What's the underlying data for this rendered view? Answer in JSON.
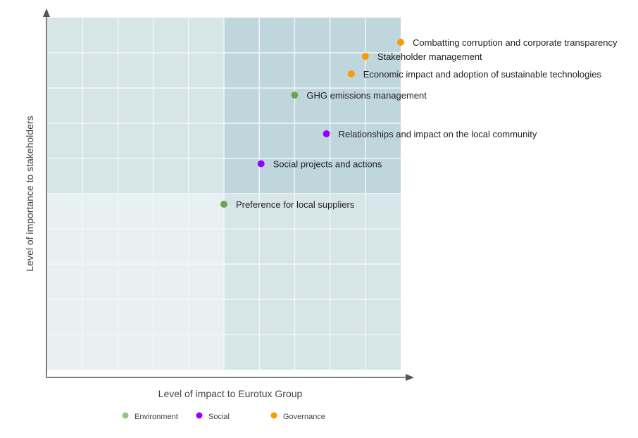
{
  "chart_data": {
    "type": "scatter",
    "title": "",
    "xlabel": "Level of impact to Eurotux Group",
    "ylabel": "Level of importance to stakeholders",
    "xlim": [
      0,
      10
    ],
    "ylim": [
      0,
      10
    ],
    "grid": true,
    "legend_position": "bottom",
    "colors": {
      "Environment": "#6aa84f",
      "Social": "#9900ff",
      "Governance": "#ff9900"
    },
    "legend_colors": {
      "Environment": "#93c47d",
      "Social": "#9900ff",
      "Governance": "#ff9900"
    },
    "quadrant_colors": {
      "high_high": "#bfd6dc",
      "mixed": "#d6e5e8",
      "low_low": "#e8f0f2"
    },
    "legend": [
      "Environment",
      "Social",
      "Governance"
    ],
    "points": [
      {
        "label": "Combatting corruption and corporate transparency",
        "category": "Governance",
        "x": 10.0,
        "y": 9.3
      },
      {
        "label": "Stakeholder management",
        "category": "Governance",
        "x": 9.0,
        "y": 8.9
      },
      {
        "label": "Economic impact and adoption of sustainable technologies",
        "category": "Governance",
        "x": 8.6,
        "y": 8.4
      },
      {
        "label": "GHG emissions management",
        "category": "Environment",
        "x": 7.0,
        "y": 7.8
      },
      {
        "label": "Relationships and impact on the local community",
        "category": "Social",
        "x": 7.9,
        "y": 6.7
      },
      {
        "label": "Social projects and actions",
        "category": "Social",
        "x": 6.05,
        "y": 5.85
      },
      {
        "label": "Preference for local suppliers",
        "category": "Environment",
        "x": 5.0,
        "y": 4.7
      }
    ]
  }
}
